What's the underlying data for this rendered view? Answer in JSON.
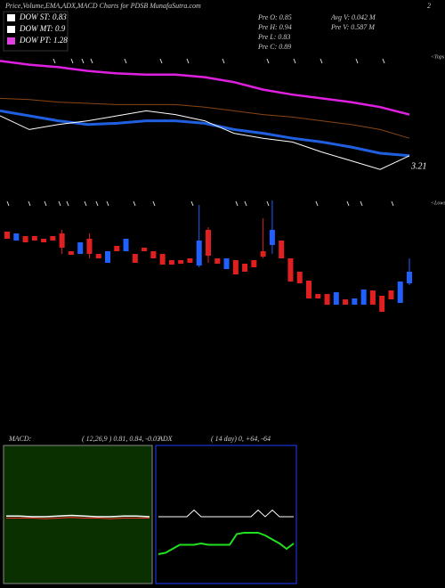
{
  "header": {
    "title": "Price,Volume,EMA,ADX,MACD Charts for PDSB MunafaSutra.com",
    "page": "2"
  },
  "legend": [
    {
      "label": "DOW ST: 0.83",
      "color": "#ffffff"
    },
    {
      "label": "DOW MT: 0.9",
      "color": "#ffffff"
    },
    {
      "label": "DOW PT: 1.28",
      "color": "#e040e0"
    }
  ],
  "stats": {
    "left": [
      "Pre  O: 0.85",
      "Pre  H: 0.94",
      "Pre  L: 0.83",
      "Pre  C: 0.89"
    ],
    "right": [
      "Avg V: 0.042  M",
      "Pre  V: 0.587 M"
    ]
  },
  "chart_data": [
    {
      "type": "line",
      "annotations": [
        "3.21",
        "<Tops"
      ],
      "ylim": [
        0.6,
        1.6
      ],
      "series": [
        {
          "color": "#e020e0",
          "width": 2.5,
          "values": [
            1.54,
            1.51,
            1.49,
            1.46,
            1.44,
            1.43,
            1.43,
            1.41,
            1.37,
            1.31,
            1.27,
            1.24,
            1.21,
            1.17,
            1.11
          ]
        },
        {
          "color": "#8b4513",
          "width": 1,
          "values": [
            1.24,
            1.23,
            1.21,
            1.2,
            1.19,
            1.19,
            1.19,
            1.17,
            1.14,
            1.11,
            1.09,
            1.06,
            1.03,
            0.99,
            0.92
          ]
        },
        {
          "color": "#2060e0",
          "width": 3,
          "values": [
            1.14,
            1.1,
            1.06,
            1.03,
            1.04,
            1.06,
            1.06,
            1.04,
            0.99,
            0.96,
            0.92,
            0.89,
            0.85,
            0.8,
            0.78
          ]
        },
        {
          "color": "#ffffff",
          "width": 1,
          "values": [
            1.1,
            0.99,
            1.03,
            1.06,
            1.1,
            1.14,
            1.11,
            1.06,
            0.96,
            0.92,
            0.89,
            0.81,
            0.74,
            0.67,
            0.78
          ]
        }
      ]
    },
    {
      "type": "candlestick",
      "annotations": [
        "<Lows"
      ],
      "ylim": [
        0.7,
        1.45
      ],
      "up_color": "#2060ff",
      "down_color": "#e02020",
      "open": [
        1.225,
        1.175,
        1.2,
        1.2,
        1.185,
        1.2,
        1.215,
        1.115,
        1.1,
        1.185,
        1.1,
        1.05,
        1.145,
        1.115,
        1.1,
        1.135,
        1.115,
        1.1,
        1.065,
        1.065,
        1.075,
        1.035,
        1.235,
        1.075,
        1.015,
        1.065,
        1.045,
        1.065,
        1.115,
        1.15,
        1.175,
        1.075,
        1.0,
        0.95,
        0.875,
        0.875,
        0.815,
        0.845,
        0.815,
        0.815,
        0.895,
        0.865,
        0.895,
        0.825,
        0.935
      ],
      "high": [
        1.225,
        1.215,
        1.2,
        1.2,
        1.185,
        1.2,
        1.235,
        1.115,
        1.165,
        1.215,
        1.1,
        1.115,
        1.145,
        1.185,
        1.1,
        1.135,
        1.115,
        1.1,
        1.065,
        1.065,
        1.075,
        1.375,
        1.25,
        1.075,
        1.075,
        1.065,
        1.045,
        1.065,
        1.3,
        1.4,
        1.175,
        1.075,
        1.0,
        0.95,
        0.875,
        0.875,
        0.885,
        0.845,
        0.85,
        0.9,
        0.895,
        0.865,
        0.895,
        0.945,
        1.075
      ],
      "low": [
        1.185,
        1.175,
        1.165,
        1.175,
        1.165,
        1.175,
        1.1,
        1.095,
        1.1,
        1.075,
        1.075,
        1.05,
        1.115,
        1.115,
        1.05,
        1.115,
        1.075,
        1.04,
        1.04,
        1.045,
        1.05,
        1.025,
        1.05,
        1.045,
        1.015,
        0.985,
        1.0,
        1.025,
        1.075,
        1.1,
        1.075,
        0.945,
        0.935,
        0.85,
        0.85,
        0.815,
        0.815,
        0.815,
        0.815,
        0.815,
        0.815,
        0.775,
        0.845,
        0.825,
        0.925
      ],
      "close": [
        1.185,
        1.215,
        1.165,
        1.175,
        1.165,
        1.175,
        1.135,
        1.095,
        1.165,
        1.1,
        1.075,
        1.115,
        1.115,
        1.185,
        1.05,
        1.115,
        1.075,
        1.04,
        1.04,
        1.045,
        1.05,
        1.175,
        1.09,
        1.045,
        1.075,
        0.985,
        1.0,
        1.025,
        1.085,
        1.235,
        1.075,
        0.945,
        0.935,
        0.85,
        0.85,
        0.815,
        0.885,
        0.815,
        0.85,
        0.9,
        0.815,
        0.775,
        0.845,
        0.945,
        1.0
      ]
    },
    {
      "type": "line",
      "title": "MACD:",
      "subtitle": "( 12,26,9 ) 0.81, 0.84, -0.03",
      "ylim": [
        -1,
        1
      ],
      "background": "#0a3000",
      "series": [
        {
          "color": "#ffffff",
          "width": 1.5,
          "values": [
            0.01,
            0.01,
            0.0,
            0.0,
            0.01,
            0.02,
            0.01,
            0.0,
            0.0,
            0.01,
            0.01,
            0.0
          ]
        },
        {
          "color": "#ff3030",
          "width": 1,
          "values": [
            -0.02,
            -0.02,
            -0.02,
            -0.03,
            -0.02,
            -0.01,
            -0.02,
            -0.02,
            -0.03,
            -0.02,
            -0.02,
            -0.02
          ]
        }
      ]
    },
    {
      "type": "line",
      "title": "ADX",
      "subtitle": "( 14  day) 0, +64, -64",
      "ylim": [
        0,
        100
      ],
      "background": "#000000",
      "series": [
        {
          "color": "#ffffff",
          "width": 1,
          "values": [
            50,
            50,
            50,
            50,
            50,
            55,
            50,
            50,
            50,
            50,
            50,
            50,
            50,
            50,
            55,
            50,
            55,
            50,
            50,
            50
          ]
        },
        {
          "color": "#20e020",
          "width": 2,
          "values": [
            22,
            23,
            26,
            29,
            29,
            29,
            30,
            29,
            29,
            29,
            29,
            37,
            38,
            38,
            38,
            36,
            33,
            30,
            26,
            30
          ]
        }
      ]
    }
  ]
}
